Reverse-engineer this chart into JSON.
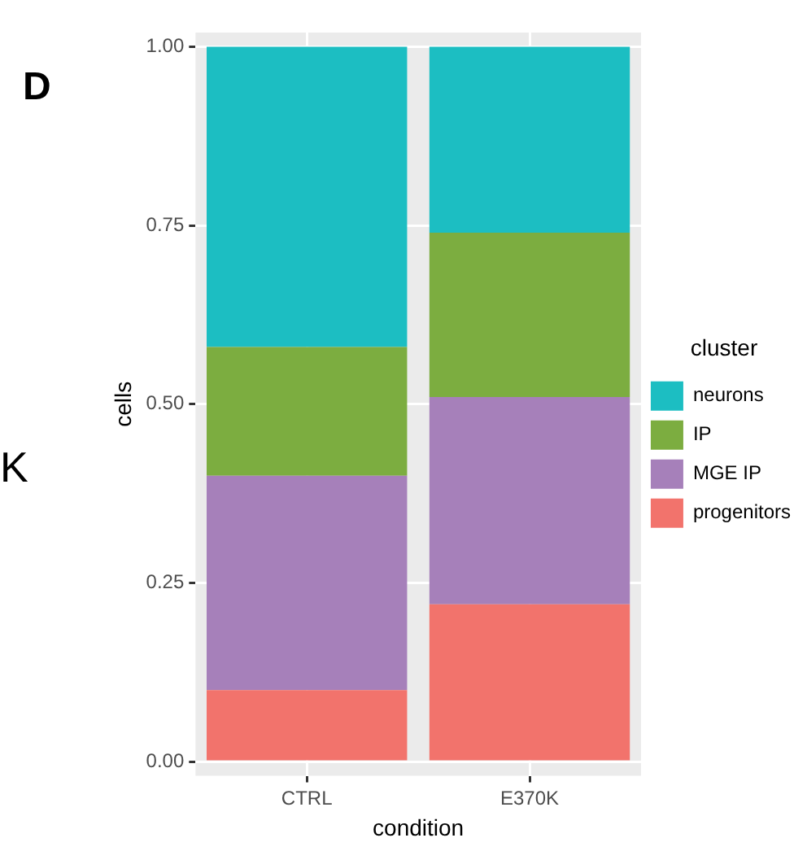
{
  "chart_data": {
    "type": "bar",
    "stacked": true,
    "xlabel": "condition",
    "ylabel": "cells",
    "legend_title": "cluster",
    "legend": "right",
    "grid": true,
    "categories": [
      "CTRL",
      "E370K"
    ],
    "series": [
      {
        "name": "progenitors",
        "color": "#f2736c",
        "values": [
          0.1,
          0.22
        ]
      },
      {
        "name": "MGE IP",
        "color": "#a680ba",
        "values": [
          0.3,
          0.29
        ]
      },
      {
        "name": "IP",
        "color": "#7cad40",
        "values": [
          0.18,
          0.23
        ]
      },
      {
        "name": "neurons",
        "color": "#1cbec2",
        "values": [
          0.42,
          0.26
        ]
      }
    ],
    "ylim": [
      -0.02,
      1.02
    ],
    "yticks": [
      {
        "value": 0,
        "label": "0.00"
      },
      {
        "value": 0.25,
        "label": "0.25"
      },
      {
        "value": 0.5,
        "label": "0.50"
      },
      {
        "value": 0.75,
        "label": "0.75"
      },
      {
        "value": 1,
        "label": "1.00"
      }
    ],
    "annotations": [
      "D",
      "K"
    ]
  }
}
